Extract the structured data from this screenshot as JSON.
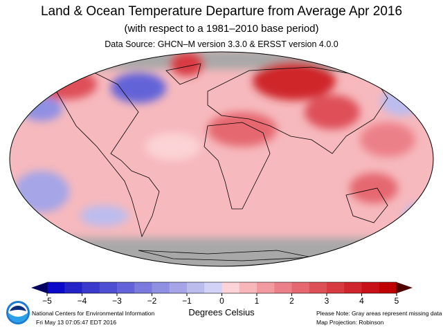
{
  "title": "Land & Ocean Temperature Departure from Average Apr 2016",
  "subtitle": "(with respect to a 1981–2010 base period)",
  "source": "Data Source: GHCN–M version 3.3.0 & ERSST version 4.0.0",
  "colorbar": {
    "ticks": [
      "−5",
      "−4",
      "−3",
      "−2",
      "−1",
      "0",
      "1",
      "2",
      "3",
      "4",
      "5"
    ],
    "range": [
      -5,
      5
    ],
    "step": 0.5,
    "colors": [
      "#0a0ac8",
      "#2323c8",
      "#3a3acd",
      "#4f4fd2",
      "#6464d8",
      "#7b7bdd",
      "#9090e3",
      "#a5a5e8",
      "#bcbcef",
      "#d2d2f6",
      "#fcd3d6",
      "#f8b6bb",
      "#f29aa0",
      "#ec8088",
      "#e56870",
      "#de5058",
      "#d83a42",
      "#cf252c",
      "#c81018",
      "#c00000"
    ],
    "low_extend": "#000060",
    "high_extend": "#500000",
    "unit": "Degrees Celsius"
  },
  "footer": {
    "org": "National Centers for Environmental Information",
    "timestamp": "Fri May 13 07:05:47 EDT 2016",
    "note": "Please Note: Gray areas represent missing data",
    "projection": "Map Projection: Robinson",
    "logo_text": "NOAA"
  },
  "colors": {
    "missing": "#a8a8a8",
    "base": "#f6b9bd"
  }
}
